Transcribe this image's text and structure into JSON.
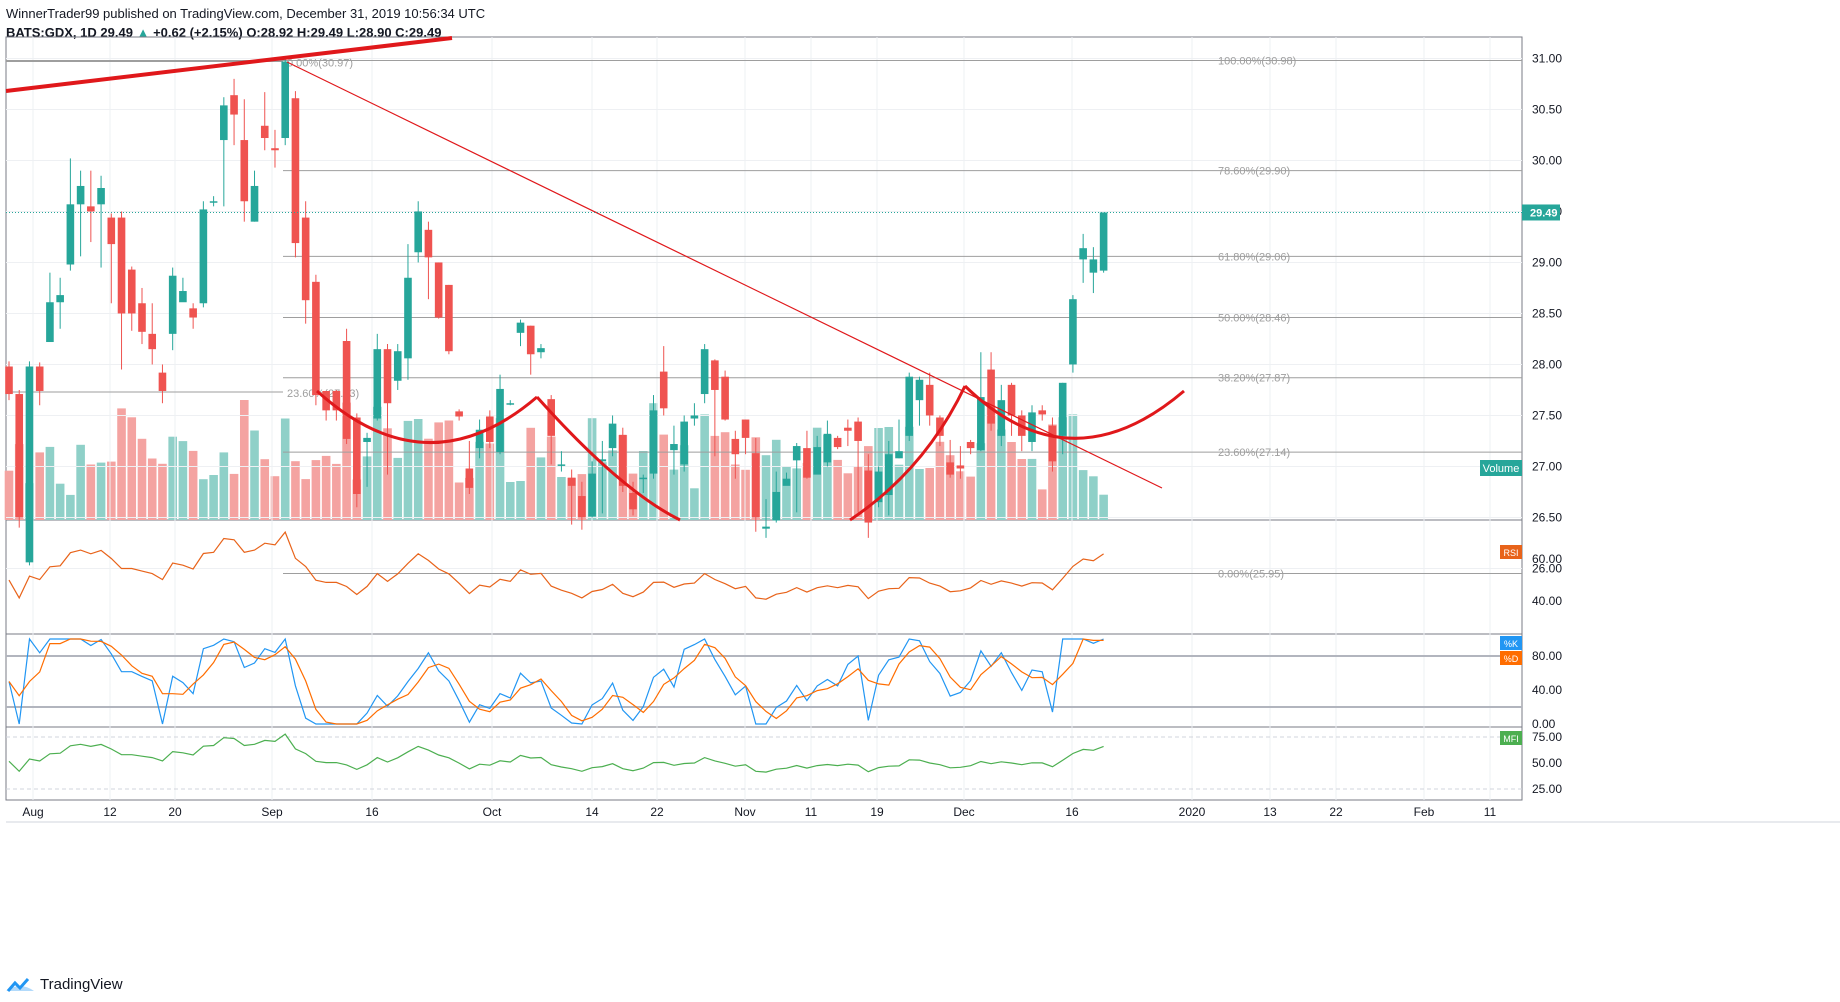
{
  "header": {
    "line1": "WinnerTrader99 published on TradingView.com, December 31, 2019 10:56:34 UTC",
    "symbol": "BATS:GDX, 1D",
    "last": "29.49",
    "change": "+0.62 (+2.15%)",
    "ohlc": "O:28.92 H:29.49 L:28.90 C:29.49"
  },
  "footer": {
    "brand": "TradingView"
  },
  "colors": {
    "up": "#26a69a",
    "down": "#ef5350",
    "fib": "#9e9e9e",
    "rsi": "#e8631a",
    "k": "#2196f3",
    "d": "#ff6d00",
    "mfi": "#4caf50",
    "pattern": "#e0181b"
  },
  "chart_data": {
    "type": "candlestick",
    "title": "BATS:GDX, 1D",
    "price_axis": [
      "31.00",
      "30.50",
      "30.00",
      "29.50",
      "29.00",
      "28.50",
      "28.00",
      "27.50",
      "27.00",
      "26.50",
      "26.00"
    ],
    "last_price": "29.49",
    "fib_levels": [
      {
        "label": "100.00%(30.98)",
        "value": 30.98
      },
      {
        "label": "78.60%(29.90)",
        "value": 29.9
      },
      {
        "label": "61.80%(29.06)",
        "value": 29.06
      },
      {
        "label": "50.00%(28.46)",
        "value": 28.46
      },
      {
        "label": "38.20%(27.87)",
        "value": 27.87
      },
      {
        "label": "23.60%(27.14)",
        "value": 27.14
      },
      {
        "label": "0.00%(25.95)",
        "value": 25.95
      }
    ],
    "fib_old_labels": [
      "0.00%(30.97)",
      "23.60%(27.73)"
    ],
    "x_labels": [
      "Aug",
      "12",
      "20",
      "Sep",
      "16",
      "Oct",
      "14",
      "22",
      "Nov",
      "11",
      "19",
      "Dec",
      "16",
      "2020",
      "13",
      "22",
      "Feb",
      "11"
    ],
    "candles": [
      [
        27.98,
        27.71,
        28.03,
        27.65
      ],
      [
        27.71,
        26.5,
        27.75,
        26.4
      ],
      [
        26.06,
        27.98,
        28.03,
        26.03
      ],
      [
        27.98,
        27.74,
        28.02,
        27.6
      ],
      [
        28.22,
        28.61,
        28.9,
        28.3
      ],
      [
        28.61,
        28.68,
        28.85,
        28.35
      ],
      [
        28.98,
        29.57,
        30.02,
        28.92
      ],
      [
        29.57,
        29.75,
        29.9,
        29.06
      ],
      [
        29.55,
        29.5,
        29.9,
        29.2
      ],
      [
        29.57,
        29.73,
        29.85,
        28.95
      ],
      [
        29.44,
        29.18,
        29.48,
        28.6
      ],
      [
        29.44,
        28.5,
        29.5,
        27.95
      ],
      [
        28.93,
        28.5,
        28.96,
        28.33
      ],
      [
        28.6,
        28.32,
        28.75,
        28.2
      ],
      [
        28.3,
        28.15,
        28.6,
        28.0
      ],
      [
        27.92,
        27.74,
        28.0,
        27.62
      ],
      [
        28.3,
        28.87,
        28.95,
        28.14
      ],
      [
        28.61,
        28.72,
        28.85,
        28.62
      ],
      [
        28.55,
        28.46,
        28.6,
        28.35
      ],
      [
        28.6,
        29.52,
        29.6,
        28.56
      ],
      [
        29.6,
        29.6,
        29.65,
        29.55
      ],
      [
        30.2,
        30.54,
        30.62,
        29.55
      ],
      [
        30.64,
        30.45,
        30.8,
        30.15
      ],
      [
        30.2,
        29.6,
        30.6,
        29.4
      ],
      [
        29.4,
        29.75,
        29.9,
        29.4
      ],
      [
        30.34,
        30.22,
        30.67,
        30.1
      ],
      [
        30.12,
        30.1,
        30.3,
        29.93
      ],
      [
        30.22,
        30.97,
        31.0,
        30.15
      ],
      [
        30.61,
        29.19,
        30.68,
        29.05
      ],
      [
        29.44,
        28.63,
        29.6,
        28.4
      ],
      [
        28.81,
        27.7,
        28.88,
        27.6
      ],
      [
        27.74,
        27.55,
        27.74,
        27.45
      ],
      [
        27.74,
        27.55,
        27.75,
        27.45
      ],
      [
        28.23,
        27.27,
        28.35,
        27.22
      ],
      [
        27.48,
        26.73,
        27.52,
        26.6
      ],
      [
        27.24,
        27.28,
        27.33,
        26.8
      ],
      [
        27.47,
        28.15,
        28.3,
        27.45
      ],
      [
        28.15,
        27.62,
        28.2,
        26.92
      ],
      [
        27.84,
        28.13,
        28.2,
        27.75
      ],
      [
        28.06,
        28.85,
        29.18,
        27.85
      ],
      [
        29.1,
        29.5,
        29.6,
        29.0
      ],
      [
        29.32,
        29.05,
        29.4,
        28.64
      ],
      [
        29.0,
        28.46,
        29.0,
        28.45
      ],
      [
        28.78,
        28.13,
        28.78,
        28.1
      ],
      [
        27.54,
        27.49,
        27.56,
        27.45
      ],
      [
        26.98,
        26.79,
        27.25,
        26.73
      ],
      [
        27.18,
        27.36,
        27.46,
        27.08
      ],
      [
        27.49,
        27.24,
        27.55,
        27.18
      ],
      [
        27.14,
        27.76,
        27.9,
        27.12
      ],
      [
        27.62,
        27.62,
        27.65,
        27.6
      ],
      [
        28.31,
        28.41,
        28.44,
        28.18
      ],
      [
        28.38,
        28.1,
        28.38,
        27.9
      ],
      [
        28.12,
        28.16,
        28.2,
        28.06
      ],
      [
        27.66,
        27.3,
        27.7,
        27.02
      ],
      [
        27.02,
        27.02,
        27.15,
        26.95
      ],
      [
        26.89,
        26.81,
        26.97,
        26.43
      ],
      [
        26.71,
        26.5,
        26.85,
        26.38
      ],
      [
        26.51,
        26.93,
        27.05,
        26.5
      ],
      [
        27.05,
        27.07,
        27.25,
        26.54
      ],
      [
        27.18,
        27.42,
        27.5,
        27.1
      ],
      [
        27.31,
        26.81,
        27.38,
        26.75
      ],
      [
        26.74,
        26.58,
        26.85,
        26.52
      ],
      [
        26.89,
        26.89,
        26.92,
        26.74
      ],
      [
        26.93,
        27.55,
        27.7,
        26.88
      ],
      [
        27.93,
        27.57,
        28.18,
        27.5
      ],
      [
        27.16,
        27.22,
        27.4,
        26.92
      ],
      [
        27.02,
        27.44,
        27.5,
        26.95
      ],
      [
        27.47,
        27.5,
        27.62,
        27.4
      ],
      [
        27.71,
        28.15,
        28.2,
        27.62
      ],
      [
        28.04,
        27.75,
        28.05,
        27.1
      ],
      [
        27.88,
        27.46,
        27.94,
        27.45
      ],
      [
        27.27,
        27.12,
        27.35,
        26.88
      ],
      [
        27.46,
        27.28,
        27.46,
        27.12
      ],
      [
        27.13,
        26.5,
        27.28,
        26.36
      ],
      [
        26.39,
        26.41,
        26.68,
        26.3
      ],
      [
        26.47,
        26.75,
        26.95,
        26.45
      ],
      [
        26.81,
        26.88,
        26.94,
        26.83
      ],
      [
        27.06,
        27.2,
        27.23,
        26.55
      ],
      [
        27.18,
        26.89,
        27.35,
        26.88
      ],
      [
        26.92,
        27.19,
        27.3,
        27.1
      ],
      [
        27.04,
        27.32,
        27.45,
        27.0
      ],
      [
        27.28,
        27.19,
        27.3,
        27.17
      ],
      [
        27.38,
        27.35,
        27.46,
        27.2
      ],
      [
        27.44,
        27.25,
        27.48,
        26.55
      ],
      [
        26.96,
        26.45,
        27.12,
        26.3
      ],
      [
        26.65,
        26.95,
        27.0,
        26.6
      ],
      [
        26.72,
        27.12,
        27.25,
        26.52
      ],
      [
        27.08,
        27.15,
        27.46,
        27.08
      ],
      [
        27.3,
        27.88,
        27.92,
        27.25
      ],
      [
        27.65,
        27.85,
        27.88,
        27.4
      ],
      [
        27.8,
        27.5,
        27.92,
        27.4
      ],
      [
        27.48,
        27.3,
        27.5,
        27.2
      ],
      [
        27.04,
        26.92,
        27.26,
        26.89
      ],
      [
        27.01,
        26.98,
        27.2,
        26.88
      ],
      [
        27.24,
        27.18,
        27.26,
        27.12
      ],
      [
        27.16,
        27.68,
        28.12,
        27.15
      ],
      [
        27.95,
        27.42,
        28.12,
        27.35
      ],
      [
        27.3,
        27.65,
        27.8,
        27.2
      ],
      [
        27.8,
        27.5,
        27.82,
        27.3
      ],
      [
        27.5,
        27.3,
        27.55,
        27.15
      ],
      [
        27.24,
        27.53,
        27.6,
        27.15
      ],
      [
        27.55,
        27.51,
        27.6,
        27.45
      ],
      [
        27.4,
        27.05,
        27.48,
        26.95
      ],
      [
        27.3,
        27.82,
        27.82,
        27.12
      ],
      [
        28.0,
        28.64,
        28.68,
        27.92
      ],
      [
        29.03,
        29.14,
        29.28,
        28.8
      ],
      [
        28.9,
        29.03,
        29.15,
        28.7
      ],
      [
        28.92,
        29.49,
        29.49,
        28.9
      ]
    ]
  },
  "indicators": {
    "volume_label": "Volume",
    "rsi_label": "RSI",
    "rsi_axis": [
      "60.00",
      "40.00"
    ],
    "stoch_k_label": "%K",
    "stoch_d_label": "%D",
    "stoch_axis": [
      "80.00",
      "40.00",
      "0.00"
    ],
    "mfi_label": "MFI",
    "mfi_axis": [
      "75.00",
      "50.00",
      "25.00"
    ]
  }
}
